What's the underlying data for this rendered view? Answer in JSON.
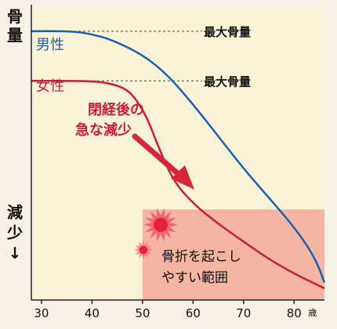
{
  "colors": {
    "background": "#f6f0e6",
    "plot_background": "#faf3d8",
    "male": "#1a5fb4",
    "female": "#c81e3a",
    "fracture_zone": "#f6b4a2",
    "axis": "#222222",
    "reference_line": "#444444"
  },
  "chart_data": {
    "type": "line",
    "ylabel_top": "骨量",
    "ylabel_bottom": "減少↓",
    "x_ticks": [
      "30",
      "40",
      "50",
      "60",
      "70",
      "80"
    ],
    "x_unit": "歳",
    "xlim": [
      28,
      86
    ],
    "ylim": [
      0,
      100
    ],
    "grid": false,
    "series": [
      {
        "name": "男性",
        "x": [
          28,
          36,
          40,
          44,
          50,
          55,
          60,
          65,
          70,
          75,
          80,
          84,
          86
        ],
        "y": [
          92,
          92,
          91,
          89,
          84,
          77,
          67,
          56,
          45,
          35,
          25,
          15,
          6
        ]
      },
      {
        "name": "女性",
        "x": [
          28,
          40,
          44,
          47,
          49,
          51,
          53,
          56,
          60,
          65,
          70,
          75,
          80,
          86
        ],
        "y": [
          75,
          75,
          74,
          72,
          68,
          62,
          53,
          41,
          33,
          26,
          20,
          14,
          9,
          4
        ]
      }
    ],
    "reference_lines": [
      {
        "label": "最大骨量",
        "y": 92
      },
      {
        "label": "最大骨量",
        "y": 75
      }
    ],
    "annotations": [
      {
        "text": "閉経後の\n急な減少"
      },
      {
        "text": "骨折を起こし\nやすい範囲"
      }
    ],
    "fracture_zone": {
      "x_from": 50,
      "y_top": 31
    }
  }
}
